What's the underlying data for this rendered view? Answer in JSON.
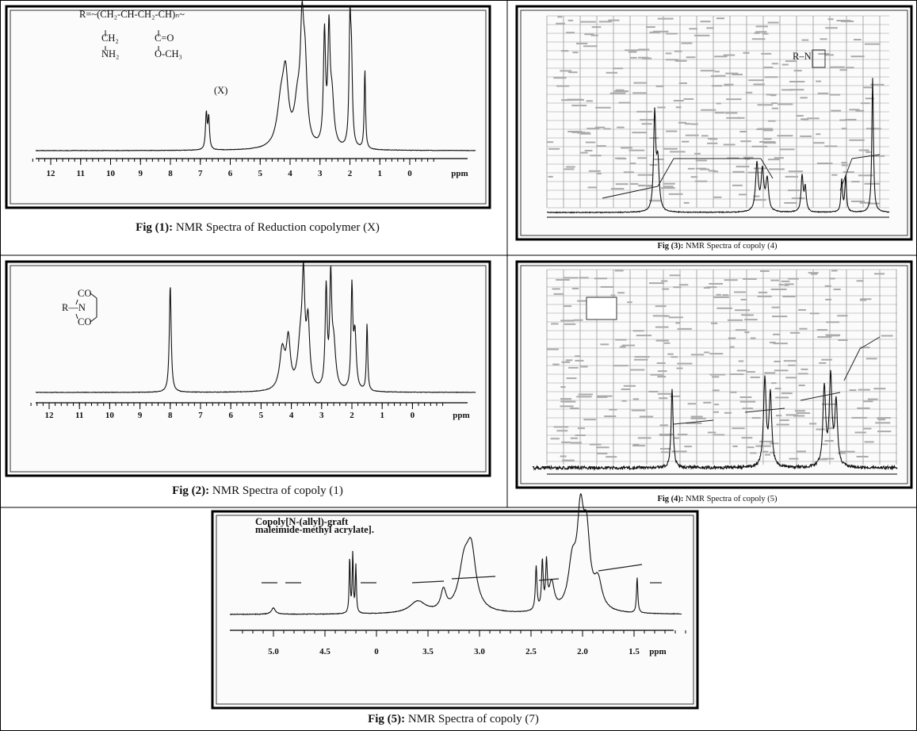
{
  "figures": [
    {
      "caption_label": "Fig (1):",
      "caption": " NMR Spectra of Reduction copolymer (X)",
      "structure": [
        "R=~(CH₂-CH-CH₂-CH)ₙ~",
        "CH₂",
        "C=O",
        "NH₂",
        "O-CH₃",
        "(X)"
      ],
      "axis_ticks": [
        "12",
        "11",
        "10",
        "9",
        "8",
        "7",
        "6",
        "5",
        "4",
        "3",
        "2",
        "1",
        "0"
      ],
      "axis_unit": "ppm"
    },
    {
      "caption_label": "Fig (3):",
      "caption": " NMR Spectra of copoly (4)",
      "structure": [
        "R–N"
      ]
    },
    {
      "caption_label": "Fig (2):",
      "caption": " NMR Spectra of copoly (1)",
      "structure": [
        "R—N",
        "CO",
        "CO"
      ],
      "axis_ticks": [
        "12",
        "11",
        "10",
        "9",
        "8",
        "7",
        "6",
        "5",
        "4",
        "3",
        "2",
        "1",
        "0"
      ],
      "axis_unit": "ppm"
    },
    {
      "caption_label": "Fig (4):",
      "caption": " NMR Spectra of copoly (5)"
    },
    {
      "caption_label": "Fig (5):",
      "caption": " NMR Spectra of copoly (7)",
      "structure": [
        "Copoly[N-(allyl)-graft",
        "maleimide-methyl acrylate]."
      ],
      "axis_ticks": [
        "5.0",
        "4.5",
        "0",
        "3.5",
        "3.0",
        "2.5",
        "2.0",
        "1.5"
      ],
      "axis_unit": "ppm"
    }
  ]
}
